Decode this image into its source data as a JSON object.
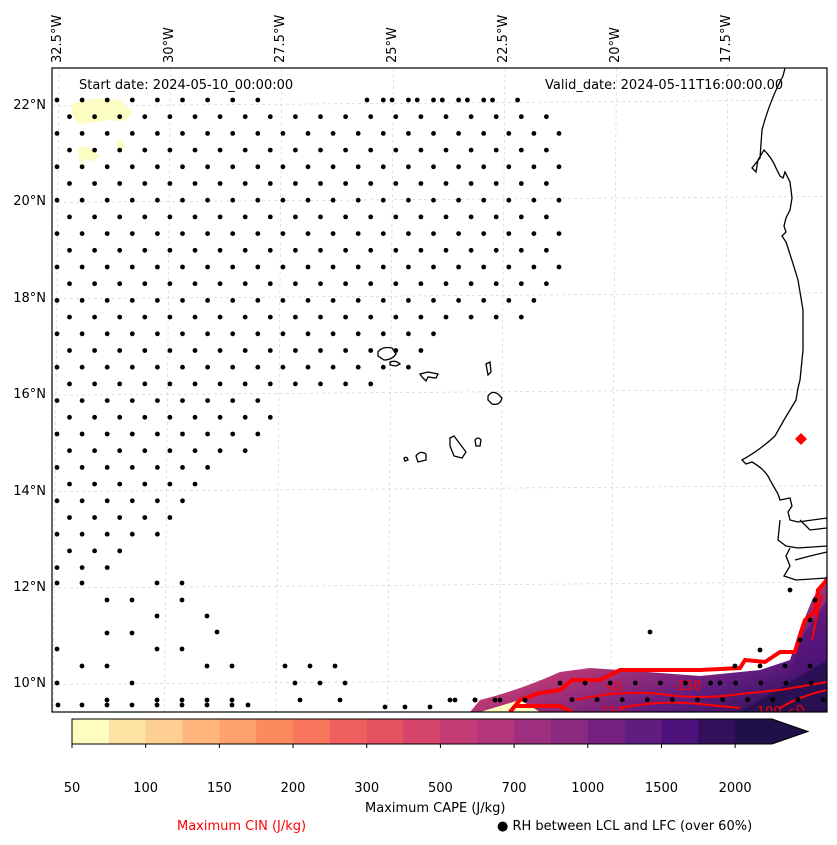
{
  "map": {
    "type": "meteorological-map",
    "region": "Eastern tropical Atlantic / West Africa coast",
    "start_date_text": "Start date: 2024-05-10_00:00:00",
    "valid_date_text": "Valid_date: 2024-05-11T16:00:00.00",
    "extent": {
      "lon_min": -32.6,
      "lon_max": -16.0,
      "lat_min": 8.9,
      "lat_max": 22.8
    },
    "lon_ticks": [
      {
        "lon": -32.5,
        "label": "32.5°W"
      },
      {
        "lon": -30.0,
        "label": "30°W"
      },
      {
        "lon": -27.5,
        "label": "27.5°W"
      },
      {
        "lon": -25.0,
        "label": "25°W"
      },
      {
        "lon": -22.5,
        "label": "22.5°W"
      },
      {
        "lon": -20.0,
        "label": "20°W"
      },
      {
        "lon": -17.5,
        "label": "17.5°W"
      }
    ],
    "lat_ticks": [
      {
        "lat": 22,
        "label": "22°N"
      },
      {
        "lat": 20,
        "label": "20°N"
      },
      {
        "lat": 18,
        "label": "18°N"
      },
      {
        "lat": 16,
        "label": "16°N"
      },
      {
        "lat": 14,
        "label": "14°N"
      },
      {
        "lat": 12,
        "label": "12°N"
      },
      {
        "lat": 10,
        "label": "10°N"
      }
    ],
    "gridlines": true,
    "marker": {
      "type": "diamond",
      "color": "#ff0000",
      "lon": -16.45,
      "lat": 15.05
    },
    "cin_contour_labels": [
      "-50",
      "-150",
      "-150",
      "-100",
      "-50",
      "-50"
    ],
    "cin_contour_color": "#ff0000"
  },
  "colorbar": {
    "label": "Maximum CAPE (J/kg)",
    "tick_labels": [
      "50",
      "100",
      "150",
      "200",
      "300",
      "500",
      "700",
      "1000",
      "1500",
      "2000"
    ],
    "levels": [
      50,
      75,
      100,
      125,
      150,
      175,
      200,
      250,
      300,
      400,
      500,
      600,
      700,
      850,
      1000,
      1250,
      1500,
      1750,
      2000
    ],
    "colors": [
      "#fcfdbf",
      "#fde2a3",
      "#fecf92",
      "#feb57c",
      "#fea16e",
      "#fd8a5f",
      "#f8765c",
      "#ef5f5f",
      "#e4515f",
      "#d6456c",
      "#c33b75",
      "#b3367a",
      "#9e2f7f",
      "#8a2a7f",
      "#762181",
      "#611c7f",
      "#4c117a",
      "#33105b",
      "#1f1048"
    ],
    "extend": "max"
  },
  "legend": {
    "cin_label": "Maximum CIN (J/kg)",
    "rh_label": "RH between LCL and LFC (over 60%)",
    "rh_marker": "●"
  }
}
